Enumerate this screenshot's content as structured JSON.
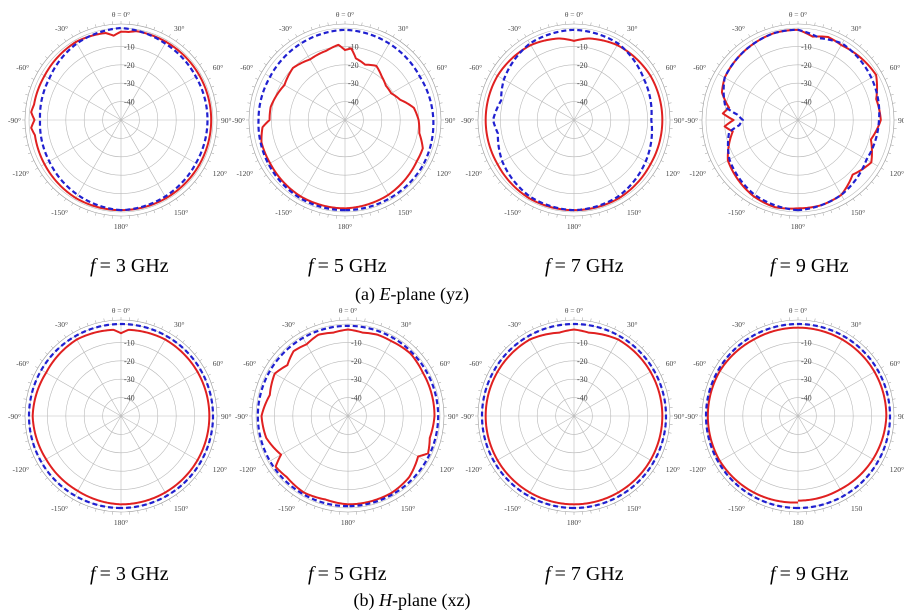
{
  "figure": {
    "caption_a": {
      "prefix": "(a) ",
      "italic": "E",
      "suffix": "-plane (yz)"
    },
    "caption_b": {
      "prefix": "(b) ",
      "italic": "H",
      "suffix": "-plane (xz)"
    },
    "freq_var": "f",
    "freq_labels": [
      "= 3 GHz",
      "= 5 GHz",
      "= 7 GHz",
      "= 9 GHz"
    ]
  },
  "chart_data": [
    {
      "type": "polar-line",
      "plane": "E",
      "frequency": "f = 3 GHz",
      "angle_ticks": [
        "θ = 0°",
        "30°",
        "60°",
        "90°",
        "120°",
        "150°",
        "180°",
        "-150°",
        "-120°",
        "-90°",
        "-60°",
        "-30°"
      ],
      "radial_ticks": [
        -10,
        -20,
        -30,
        -40
      ],
      "r_range_db": [
        -50,
        0
      ],
      "grid": true,
      "series": [
        {
          "color": "#e02020",
          "dash": "solid",
          "theta_deg": [
            -180,
            -150,
            -120,
            -100,
            -95,
            -90,
            -85,
            -80,
            -60,
            -30,
            -10,
            -5,
            0,
            5,
            10,
            30,
            60,
            90,
            120,
            150,
            180
          ],
          "gain_db": [
            -1,
            -1,
            -2,
            -2.5,
            -1,
            -3,
            -1,
            -2,
            -2,
            -1,
            -2,
            -4,
            -2,
            -2,
            -1,
            -1,
            -1,
            -1,
            -1,
            -1,
            -1
          ]
        },
        {
          "color": "#2020d0",
          "dash": "dashed",
          "theta_deg": [
            -180,
            -150,
            -120,
            -90,
            -60,
            -30,
            0,
            30,
            60,
            90,
            120,
            150,
            180
          ],
          "gain_db": [
            -1,
            -3,
            -5,
            -6,
            -5,
            -2,
            0,
            -2,
            -3,
            -3,
            -3,
            -2,
            -1
          ]
        }
      ]
    },
    {
      "type": "polar-line",
      "plane": "E",
      "frequency": "f = 5 GHz",
      "angle_ticks": [
        "θ = 0°",
        "30°",
        "60°",
        "90°",
        "120°",
        "150°",
        "180°",
        "-150°",
        "-120°",
        "-90°",
        "-60°",
        "-30°"
      ],
      "radial_ticks": [
        -10,
        -20,
        -30,
        -40
      ],
      "r_range_db": [
        -50,
        0
      ],
      "grid": true,
      "series": [
        {
          "color": "#e02020",
          "dash": "solid",
          "theta_deg": [
            -180,
            -150,
            -120,
            -105,
            -95,
            -90,
            -80,
            -60,
            -45,
            -30,
            -15,
            -5,
            0,
            5,
            10,
            20,
            30,
            40,
            50,
            60,
            70,
            80,
            90,
            100,
            110,
            120,
            150,
            180
          ],
          "gain_db": [
            -2,
            -2,
            -3,
            -3,
            -5,
            -9,
            -9,
            -12,
            -10,
            -12,
            -11,
            -9,
            -12,
            -11,
            -16,
            -18,
            -16,
            -19,
            -21,
            -21,
            -18,
            -12,
            -10,
            -9,
            -5,
            -5,
            -3,
            -2
          ]
        },
        {
          "color": "#2020d0",
          "dash": "dashed",
          "theta_deg": [
            -180,
            -150,
            -120,
            -90,
            -60,
            -30,
            0,
            30,
            60,
            90,
            120,
            150,
            180
          ],
          "gain_db": [
            -1,
            -1,
            -2,
            -3,
            -3,
            -2,
            -1,
            -2,
            -3,
            -2,
            -1,
            -1,
            -1
          ]
        }
      ]
    },
    {
      "type": "polar-line",
      "plane": "E",
      "frequency": "f = 7 GHz",
      "angle_ticks": [
        "θ = 0°",
        "30°",
        "60°",
        "90°",
        "120°",
        "150°",
        "180°",
        "-150°",
        "-120°",
        "-90°",
        "-60°",
        "-30°"
      ],
      "radial_ticks": [
        -10,
        -20,
        -30,
        -40
      ],
      "r_range_db": [
        -50,
        0
      ],
      "grid": true,
      "series": [
        {
          "color": "#e02020",
          "dash": "solid",
          "theta_deg": [
            -180,
            -150,
            -120,
            -90,
            -60,
            -30,
            -10,
            0,
            10,
            30,
            60,
            90,
            120,
            150,
            180
          ],
          "gain_db": [
            -1,
            -1,
            -2,
            -2,
            -2,
            -3,
            -5,
            -7,
            -5,
            -3,
            -2,
            -2,
            -2,
            -1,
            -1
          ]
        },
        {
          "color": "#2020d0",
          "dash": "dashed",
          "theta_deg": [
            -180,
            -150,
            -120,
            -100,
            -90,
            -75,
            -60,
            -30,
            0,
            30,
            60,
            90,
            120,
            150,
            180
          ],
          "gain_db": [
            -1,
            -2,
            -5,
            -8,
            -6,
            -9,
            -6,
            -2,
            -1,
            -2,
            -6,
            -8,
            -5,
            -2,
            -1
          ]
        }
      ]
    },
    {
      "type": "polar-line",
      "plane": "E",
      "frequency": "f = 9 GHz",
      "angle_ticks": [
        "θ = 0°",
        "30°",
        "60°",
        "90°",
        "120°",
        "150°",
        "180°",
        "-150°",
        "-120°",
        "-90°",
        "-60°",
        "-30°"
      ],
      "radial_ticks": [
        -10,
        -20,
        -30,
        -40
      ],
      "r_range_db": [
        -50,
        0
      ],
      "grid": true,
      "series": [
        {
          "color": "#e02020",
          "dash": "solid",
          "theta_deg": [
            -180,
            -165,
            -150,
            -135,
            -120,
            -110,
            -100,
            -95,
            -90,
            -85,
            -80,
            -70,
            -60,
            -45,
            -30,
            -15,
            0,
            10,
            20,
            30,
            45,
            60,
            75,
            90,
            105,
            120,
            135,
            150,
            165,
            180
          ],
          "gain_db": [
            -2,
            -1,
            -2,
            -4,
            -6,
            -10,
            -14,
            -10,
            -15,
            -9,
            -12,
            -6,
            -4,
            -3,
            -2,
            -1,
            -1,
            -4,
            -2,
            -3,
            -2,
            -1,
            -6,
            -5,
            -9,
            -4,
            -8,
            -3,
            -2,
            -2
          ]
        },
        {
          "color": "#2020d0",
          "dash": "dashed",
          "theta_deg": [
            -180,
            -150,
            -120,
            -100,
            -95,
            -90,
            -85,
            -80,
            -60,
            -30,
            -15,
            0,
            15,
            30,
            60,
            90,
            120,
            150,
            180
          ],
          "gain_db": [
            -1,
            -3,
            -7,
            -12,
            -18,
            -20,
            -17,
            -10,
            -4,
            -2,
            -1,
            -1,
            -4,
            -2,
            -4,
            -6,
            -7,
            -3,
            -1
          ]
        }
      ]
    },
    {
      "type": "polar-line",
      "plane": "H",
      "frequency": "f = 3 GHz",
      "angle_ticks": [
        "θ = 0°",
        "30°",
        "60°",
        "90°",
        "120°",
        "150°",
        "180°",
        "-150°",
        "-120°",
        "-90°",
        "-60°",
        "-30°"
      ],
      "radial_ticks": [
        -10,
        -20,
        -30,
        -40
      ],
      "r_range_db": [
        -50,
        0
      ],
      "grid": true,
      "series": [
        {
          "color": "#e02020",
          "dash": "solid",
          "theta_deg": [
            -180,
            -150,
            -120,
            -90,
            -60,
            -30,
            -5,
            0,
            5,
            30,
            60,
            90,
            120,
            150,
            180
          ],
          "gain_db": [
            -2,
            -3,
            -3,
            -2,
            -3,
            -2,
            -3,
            -5,
            -3,
            -2,
            -2,
            -2,
            -2,
            -2,
            -2
          ]
        },
        {
          "color": "#2020d0",
          "dash": "dashed",
          "theta_deg": [
            -180,
            -150,
            -120,
            -90,
            -60,
            -30,
            0,
            30,
            60,
            90,
            120,
            150,
            180
          ],
          "gain_db": [
            0,
            0,
            0,
            0,
            0,
            0,
            0,
            0,
            0,
            0,
            0,
            0,
            0
          ]
        }
      ]
    },
    {
      "type": "polar-line",
      "plane": "H",
      "frequency": "f = 5 GHz",
      "angle_ticks": [
        "θ = 0°",
        "30°",
        "60°",
        "90°",
        "120°",
        "150°",
        "180°",
        "-150°",
        "-120°",
        "-90°",
        "-60°",
        "-30°"
      ],
      "radial_ticks": [
        -10,
        -20,
        -30,
        -40
      ],
      "r_range_db": [
        -50,
        0
      ],
      "grid": true,
      "series": [
        {
          "color": "#e02020",
          "dash": "solid",
          "theta_deg": [
            -180,
            -165,
            -150,
            -135,
            -125,
            -120,
            -105,
            -90,
            -75,
            -60,
            -50,
            -40,
            -30,
            -20,
            -10,
            0,
            10,
            20,
            30,
            45,
            60,
            75,
            90,
            105,
            115,
            120,
            135,
            150,
            165,
            180
          ],
          "gain_db": [
            -2,
            -3,
            -2,
            -3,
            -2,
            -8,
            -4,
            -3,
            -6,
            -4,
            -7,
            -4,
            -5,
            -3,
            -4,
            -3,
            -4,
            -3,
            -3,
            -2,
            -3,
            -3,
            -3,
            -4,
            -2,
            -6,
            -3,
            -2,
            -2,
            -2
          ]
        },
        {
          "color": "#2020d0",
          "dash": "dashed",
          "theta_deg": [
            -180,
            -150,
            -120,
            -90,
            -60,
            -30,
            0,
            30,
            60,
            90,
            120,
            150,
            180
          ],
          "gain_db": [
            -1,
            -1,
            -1,
            -1,
            -1,
            -1,
            -1,
            -1,
            -1,
            -1,
            -1,
            -1,
            -1
          ]
        }
      ]
    },
    {
      "type": "polar-line",
      "plane": "H",
      "frequency": "f = 7 GHz",
      "angle_ticks": [
        "θ = 0°",
        "30°",
        "60°",
        "90°",
        "120°",
        "150°",
        "180°",
        "-150°",
        "-120°",
        "-90°",
        "-60°",
        "-30°"
      ],
      "radial_ticks": [
        -10,
        -20,
        -30,
        -40
      ],
      "r_range_db": [
        -50,
        0
      ],
      "grid": true,
      "series": [
        {
          "color": "#e02020",
          "dash": "solid",
          "theta_deg": [
            -180,
            -150,
            -120,
            -90,
            -60,
            -30,
            -10,
            0,
            10,
            30,
            60,
            90,
            120,
            150,
            180
          ],
          "gain_db": [
            -2,
            -2,
            -2,
            -2,
            -2,
            -2,
            -4,
            -3,
            -4,
            -2,
            -2,
            -2,
            -2,
            -2,
            -2
          ]
        },
        {
          "color": "#2020d0",
          "dash": "dashed",
          "theta_deg": [
            -180,
            -150,
            -120,
            -90,
            -60,
            -30,
            0,
            30,
            60,
            90,
            120,
            150,
            180
          ],
          "gain_db": [
            0,
            0,
            0,
            0,
            0,
            0,
            0,
            0,
            0,
            0,
            0,
            0,
            0
          ]
        }
      ]
    },
    {
      "type": "polar-line",
      "plane": "H",
      "frequency": "f = 9 GHz",
      "angle_ticks": [
        "θ = 0°",
        "30°",
        "60°",
        "90°",
        "120°",
        "150",
        "180",
        "-150°",
        "-120°",
        "-90°",
        "-60°",
        "-30°"
      ],
      "radial_ticks": [
        -10,
        -20,
        -30,
        -40
      ],
      "r_range_db": [
        -50,
        0
      ],
      "grid": true,
      "series": [
        {
          "color": "#e02020",
          "dash": "solid",
          "theta_deg": [
            -180,
            -150,
            -120,
            -90,
            -60,
            -30,
            0,
            30,
            60,
            90,
            120,
            150,
            180
          ],
          "gain_db": [
            -3,
            -2,
            -1,
            -1,
            -1,
            -2,
            -2,
            -2,
            -2,
            -2,
            -3,
            -4,
            -4
          ]
        },
        {
          "color": "#2020d0",
          "dash": "dashed",
          "theta_deg": [
            -180,
            -150,
            -120,
            -90,
            -60,
            -30,
            0,
            30,
            60,
            90,
            120,
            150,
            180
          ],
          "gain_db": [
            0,
            0,
            0,
            0,
            0,
            0,
            0,
            0,
            0,
            0,
            0,
            0,
            0
          ]
        }
      ]
    }
  ]
}
